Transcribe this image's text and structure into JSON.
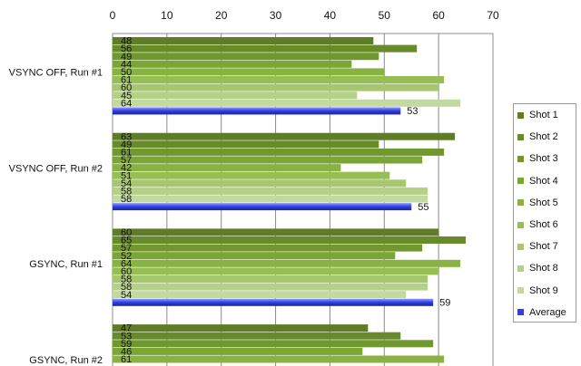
{
  "chart_data": {
    "type": "bar",
    "orientation": "horizontal",
    "title": "",
    "xlabel": "",
    "ylabel": "",
    "xlim": [
      0,
      70
    ],
    "x_ticks": [
      "0",
      "10",
      "20",
      "30",
      "40",
      "50",
      "60",
      "70"
    ],
    "x_axis_position": "top",
    "grid": "vertical major gridlines",
    "legend_position": "right",
    "groups": [
      {
        "label": "VSYNC OFF, Run #1",
        "shots": [
          48,
          56,
          49,
          44,
          50,
          61,
          60,
          45,
          64
        ],
        "average": 53
      },
      {
        "label": "VSYNC OFF, Run #2",
        "shots": [
          63,
          49,
          61,
          57,
          42,
          51,
          54,
          58,
          58
        ],
        "average": 55
      },
      {
        "label": "GSYNC, Run #1",
        "shots": [
          60,
          65,
          57,
          52,
          64,
          60,
          58,
          58,
          54
        ],
        "average": 59
      },
      {
        "label": "GSYNC, Run #2",
        "shots": [
          47,
          53,
          59,
          46,
          61,
          null,
          null,
          null,
          null
        ],
        "average": null
      }
    ],
    "series": [
      {
        "name": "Shot 1",
        "color": "#5e7d26"
      },
      {
        "name": "Shot 2",
        "color": "#678a2a"
      },
      {
        "name": "Shot 3",
        "color": "#71982e"
      },
      {
        "name": "Shot 4",
        "color": "#7ba535"
      },
      {
        "name": "Shot 5",
        "color": "#88b241"
      },
      {
        "name": "Shot 6",
        "color": "#97bd55"
      },
      {
        "name": "Shot 7",
        "color": "#a6c76d"
      },
      {
        "name": "Shot 8",
        "color": "#b5d087"
      },
      {
        "name": "Shot 9",
        "color": "#c4d9a2"
      },
      {
        "name": "Average",
        "color": "#2f3fe0"
      }
    ]
  }
}
